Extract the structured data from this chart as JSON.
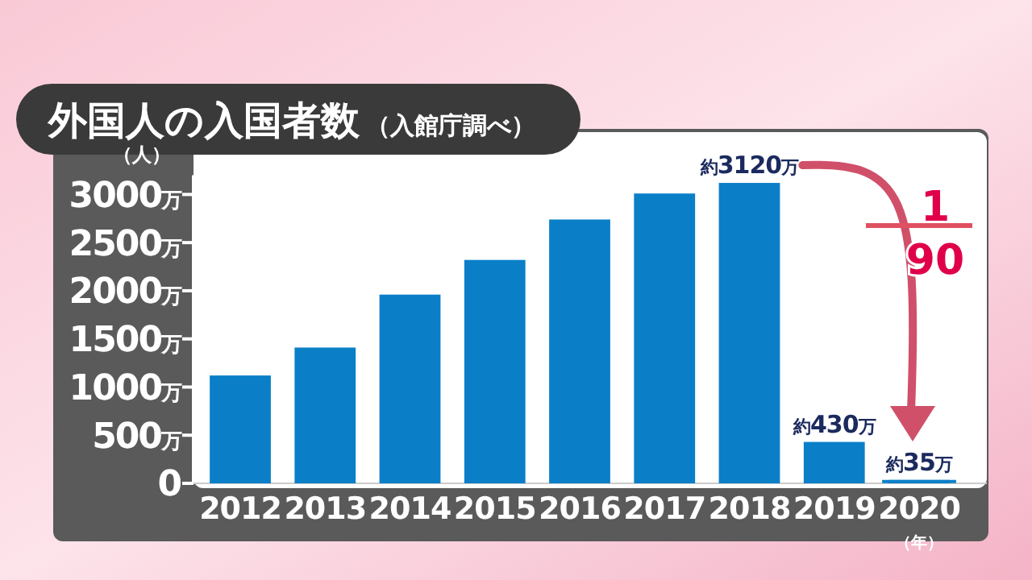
{
  "chart_data": {
    "type": "bar",
    "title": "外国人の入国者数",
    "subtitle": "（入館庁調べ）",
    "ylabel": "（人）",
    "xlabel": "（年）",
    "categories": [
      "2012",
      "2013",
      "2014",
      "2015",
      "2016",
      "2017",
      "2018",
      "2019",
      "2020"
    ],
    "values": [
      1120,
      1410,
      1960,
      2320,
      2740,
      3010,
      3120,
      430,
      35
    ],
    "value_labels": [
      null,
      null,
      null,
      null,
      null,
      null,
      "約3120万",
      "約430万",
      "約35万"
    ],
    "color": "#0a7fc8",
    "ylim": [
      0,
      3200
    ],
    "yticks": [
      {
        "value": 0,
        "label": "0"
      },
      {
        "value": 500,
        "label": "500万"
      },
      {
        "value": 1000,
        "label": "1000万"
      },
      {
        "value": 1500,
        "label": "1500万"
      },
      {
        "value": 2000,
        "label": "2000万"
      },
      {
        "value": 2500,
        "label": "2500万"
      },
      {
        "value": 3000,
        "label": "3000万"
      }
    ],
    "annotations": [
      "1",
      "90"
    ]
  }
}
